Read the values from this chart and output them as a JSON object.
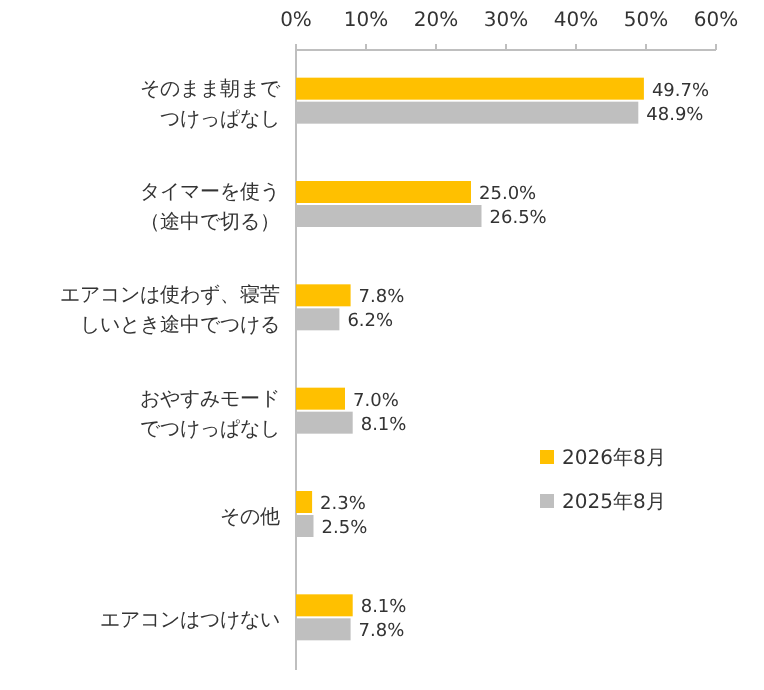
{
  "chart_data": {
    "type": "bar",
    "orientation": "horizontal",
    "categories": [
      "そのまま朝までつけっぱなし",
      "タイマーを使う（途中で切る）",
      "エアコンは使わず、寝苦しいとき途中でつける",
      "おやすみモードでつけっぱなし",
      "その他",
      "エアコンはつけない"
    ],
    "series": [
      {
        "name": "2026年8月",
        "color": "#ffc000",
        "values": [
          49.7,
          25.0,
          7.8,
          7.0,
          2.3,
          8.1
        ],
        "value_labels": [
          "49.7%",
          "25.0%",
          "7.8%",
          "7.0%",
          "2.3%",
          "8.1%"
        ]
      },
      {
        "name": "2025年8月",
        "color": "#bfbfbf",
        "values": [
          48.9,
          26.5,
          6.2,
          8.1,
          2.5,
          7.8
        ],
        "value_labels": [
          "48.9%",
          "26.5%",
          "6.2%",
          "8.1%",
          "2.5%",
          "7.8%"
        ]
      }
    ],
    "xlim": [
      0,
      60
    ],
    "xticks": [
      {
        "value": 0,
        "label": "0%"
      },
      {
        "value": 10,
        "label": "10%"
      },
      {
        "value": 20,
        "label": "20%"
      },
      {
        "value": 30,
        "label": "30%"
      },
      {
        "value": 40,
        "label": "40%"
      },
      {
        "value": 50,
        "label": "50%"
      },
      {
        "value": 60,
        "label": "60%"
      }
    ],
    "legend": "right",
    "grid": false
  }
}
